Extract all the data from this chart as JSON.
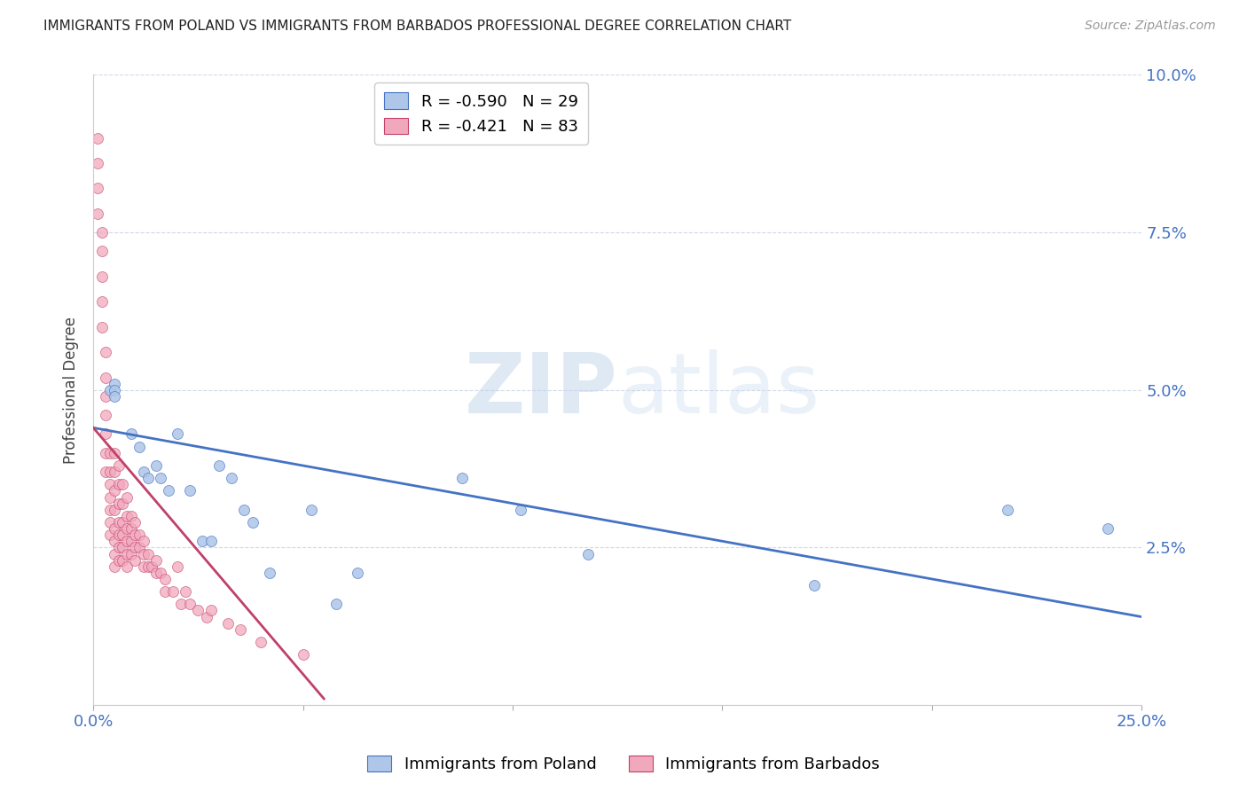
{
  "title": "IMMIGRANTS FROM POLAND VS IMMIGRANTS FROM BARBADOS PROFESSIONAL DEGREE CORRELATION CHART",
  "source": "Source: ZipAtlas.com",
  "ylabel": "Professional Degree",
  "xlim": [
    0.0,
    0.25
  ],
  "ylim": [
    0.0,
    0.1
  ],
  "yticks": [
    0.0,
    0.025,
    0.05,
    0.075,
    0.1
  ],
  "ytick_labels": [
    "",
    "2.5%",
    "5.0%",
    "7.5%",
    "10.0%"
  ],
  "xticks": [
    0.0,
    0.05,
    0.1,
    0.15,
    0.2,
    0.25
  ],
  "xtick_labels": [
    "0.0%",
    "",
    "",
    "",
    "",
    "25.0%"
  ],
  "poland_color": "#aec6e8",
  "barbados_color": "#f2a8bc",
  "poland_line_color": "#4472c4",
  "barbados_line_color": "#c0406a",
  "legend_poland_R": "-0.590",
  "legend_poland_N": "29",
  "legend_barbados_R": "-0.421",
  "legend_barbados_N": "83",
  "legend_label_poland": "Immigrants from Poland",
  "legend_label_barbados": "Immigrants from Barbados",
  "watermark_zip": "ZIP",
  "watermark_atlas": "atlas",
  "poland_scatter_x": [
    0.004,
    0.005,
    0.005,
    0.005,
    0.009,
    0.011,
    0.012,
    0.013,
    0.015,
    0.016,
    0.018,
    0.02,
    0.023,
    0.026,
    0.028,
    0.03,
    0.033,
    0.036,
    0.038,
    0.042,
    0.052,
    0.058,
    0.063,
    0.088,
    0.102,
    0.118,
    0.172,
    0.218,
    0.242
  ],
  "poland_scatter_y": [
    0.05,
    0.051,
    0.05,
    0.049,
    0.043,
    0.041,
    0.037,
    0.036,
    0.038,
    0.036,
    0.034,
    0.043,
    0.034,
    0.026,
    0.026,
    0.038,
    0.036,
    0.031,
    0.029,
    0.021,
    0.031,
    0.016,
    0.021,
    0.036,
    0.031,
    0.024,
    0.019,
    0.031,
    0.028
  ],
  "barbados_scatter_x": [
    0.001,
    0.001,
    0.001,
    0.001,
    0.002,
    0.002,
    0.002,
    0.002,
    0.002,
    0.003,
    0.003,
    0.003,
    0.003,
    0.003,
    0.003,
    0.003,
    0.004,
    0.004,
    0.004,
    0.004,
    0.004,
    0.004,
    0.004,
    0.005,
    0.005,
    0.005,
    0.005,
    0.005,
    0.005,
    0.005,
    0.005,
    0.006,
    0.006,
    0.006,
    0.006,
    0.006,
    0.006,
    0.006,
    0.007,
    0.007,
    0.007,
    0.007,
    0.007,
    0.007,
    0.008,
    0.008,
    0.008,
    0.008,
    0.008,
    0.008,
    0.009,
    0.009,
    0.009,
    0.009,
    0.01,
    0.01,
    0.01,
    0.01,
    0.011,
    0.011,
    0.012,
    0.012,
    0.012,
    0.013,
    0.013,
    0.014,
    0.015,
    0.015,
    0.016,
    0.017,
    0.017,
    0.019,
    0.02,
    0.021,
    0.022,
    0.023,
    0.025,
    0.027,
    0.028,
    0.032,
    0.035,
    0.04,
    0.05
  ],
  "barbados_scatter_y": [
    0.09,
    0.086,
    0.082,
    0.078,
    0.075,
    0.072,
    0.068,
    0.064,
    0.06,
    0.056,
    0.052,
    0.049,
    0.046,
    0.043,
    0.04,
    0.037,
    0.04,
    0.037,
    0.035,
    0.033,
    0.031,
    0.029,
    0.027,
    0.04,
    0.037,
    0.034,
    0.031,
    0.028,
    0.026,
    0.024,
    0.022,
    0.038,
    0.035,
    0.032,
    0.029,
    0.027,
    0.025,
    0.023,
    0.035,
    0.032,
    0.029,
    0.027,
    0.025,
    0.023,
    0.033,
    0.03,
    0.028,
    0.026,
    0.024,
    0.022,
    0.03,
    0.028,
    0.026,
    0.024,
    0.029,
    0.027,
    0.025,
    0.023,
    0.027,
    0.025,
    0.026,
    0.024,
    0.022,
    0.024,
    0.022,
    0.022,
    0.023,
    0.021,
    0.021,
    0.02,
    0.018,
    0.018,
    0.022,
    0.016,
    0.018,
    0.016,
    0.015,
    0.014,
    0.015,
    0.013,
    0.012,
    0.01,
    0.008
  ],
  "poland_line_x": [
    0.0,
    0.25
  ],
  "poland_line_y": [
    0.044,
    0.014
  ],
  "barbados_line_x": [
    0.0,
    0.055
  ],
  "barbados_line_y": [
    0.044,
    0.001
  ],
  "background_color": "#ffffff",
  "grid_color": "#d0d8e8",
  "title_color": "#222222",
  "axis_label_color": "#4472c4",
  "marker_size": 75
}
